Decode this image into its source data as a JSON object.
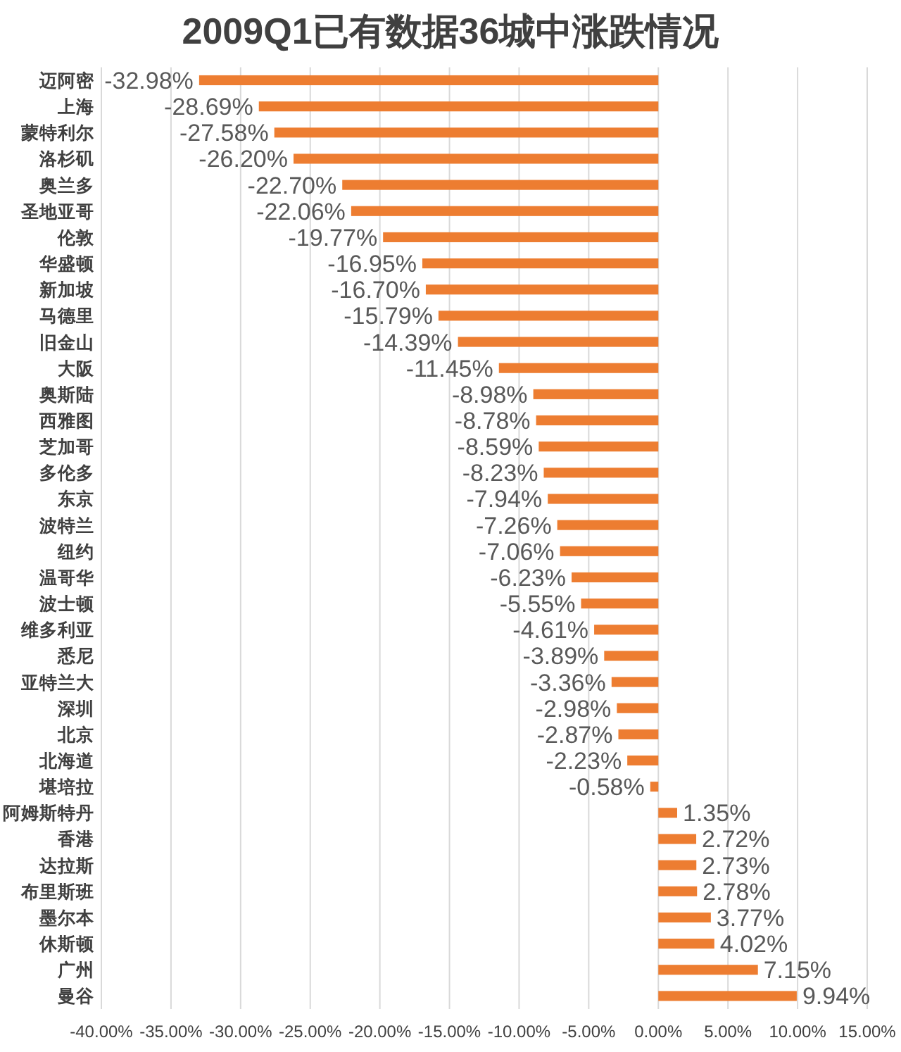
{
  "chart_data": {
    "type": "bar",
    "orientation": "horizontal",
    "title": "2009Q1已有数据36城中涨跌情况",
    "categories": [
      "迈阿密",
      "上海",
      "蒙特利尔",
      "洛杉矶",
      "奥兰多",
      "圣地亚哥",
      "伦敦",
      "华盛顿",
      "新加坡",
      "马德里",
      "旧金山",
      "大阪",
      "奥斯陆",
      "西雅图",
      "芝加哥",
      "多伦多",
      "东京",
      "波特兰",
      "纽约",
      "温哥华",
      "波士顿",
      "维多利亚",
      "悉尼",
      "亚特兰大",
      "深圳",
      "北京",
      "北海道",
      "堪培拉",
      "阿姆斯特丹",
      "香港",
      "达拉斯",
      "布里斯班",
      "墨尔本",
      "休斯顿",
      "广州",
      "曼谷"
    ],
    "values": [
      -32.98,
      -28.69,
      -27.58,
      -26.2,
      -22.7,
      -22.06,
      -19.77,
      -16.95,
      -16.7,
      -15.79,
      -14.39,
      -11.45,
      -8.98,
      -8.78,
      -8.59,
      -8.23,
      -7.94,
      -7.26,
      -7.06,
      -6.23,
      -5.55,
      -4.61,
      -3.89,
      -3.36,
      -2.98,
      -2.87,
      -2.23,
      -0.58,
      1.35,
      2.72,
      2.73,
      2.78,
      3.77,
      4.02,
      7.15,
      9.94
    ],
    "value_labels": [
      "-32.98%",
      "-28.69%",
      "-27.58%",
      "-26.20%",
      "-22.70%",
      "-22.06%",
      "-19.77%",
      "-16.95%",
      "-16.70%",
      "-15.79%",
      "-14.39%",
      "-11.45%",
      "-8.98%",
      "-8.78%",
      "-8.59%",
      "-8.23%",
      "-7.94%",
      "-7.26%",
      "-7.06%",
      "-6.23%",
      "-5.55%",
      "-4.61%",
      "-3.89%",
      "-3.36%",
      "-2.98%",
      "-2.87%",
      "-2.23%",
      "-0.58%",
      "1.35%",
      "2.72%",
      "2.73%",
      "2.78%",
      "3.77%",
      "4.02%",
      "7.15%",
      "9.94%"
    ],
    "color": "#ed7d31",
    "xlim": [
      -40,
      15
    ],
    "xticks": [
      {
        "value": -40,
        "label": "-40.00%"
      },
      {
        "value": -35,
        "label": "-35.00%"
      },
      {
        "value": -30,
        "label": "-30.00%"
      },
      {
        "value": -25,
        "label": "-25.00%"
      },
      {
        "value": -20,
        "label": "-20.00%"
      },
      {
        "value": -15,
        "label": "-15.00%"
      },
      {
        "value": -10,
        "label": "-10.00%"
      },
      {
        "value": -5,
        "label": "-5.00%"
      },
      {
        "value": 0,
        "label": "0.00%"
      },
      {
        "value": 5,
        "label": "5.00%"
      },
      {
        "value": 10,
        "label": "10.00%"
      },
      {
        "value": 15,
        "label": "15.00%"
      }
    ],
    "grid": "x"
  }
}
